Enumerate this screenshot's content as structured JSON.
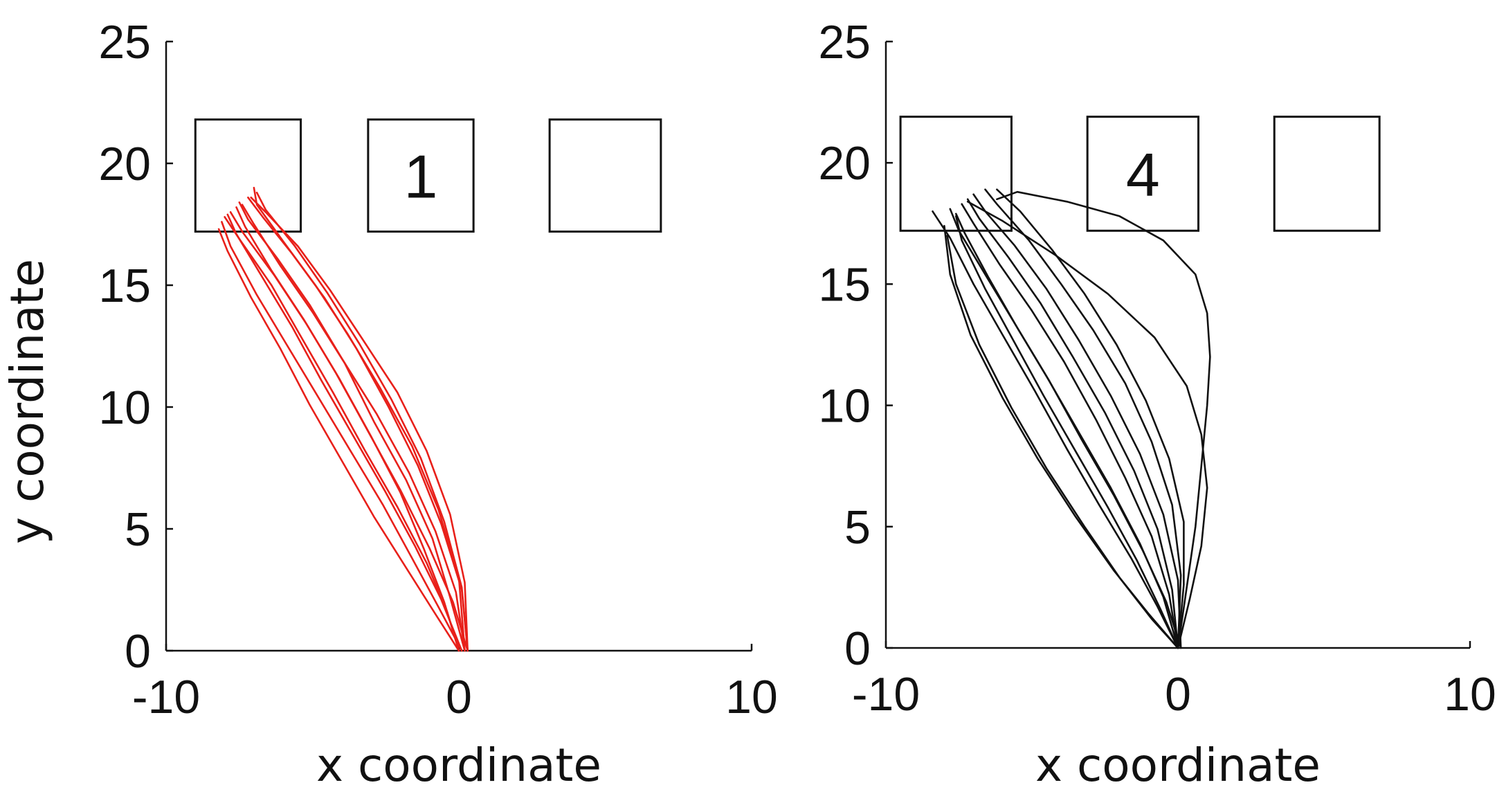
{
  "chart_data": [
    {
      "type": "line",
      "panel": "left",
      "title": "",
      "xlabel": "x coordinate",
      "ylabel": "y coordinate",
      "xlim": [
        -10,
        10
      ],
      "ylim": [
        0,
        25
      ],
      "xticks": [
        "-10",
        "0",
        "10"
      ],
      "yticks": [
        "0",
        "5",
        "10",
        "15",
        "20",
        "25"
      ],
      "grid": false,
      "trace_color": "#e8201a",
      "target_boxes": [
        {
          "x_range": [
            -9.0,
            -5.4
          ],
          "y_range": [
            17.2,
            21.8
          ],
          "label": ""
        },
        {
          "x_range": [
            -3.1,
            0.5
          ],
          "y_range": [
            17.2,
            21.8
          ],
          "label": "1"
        },
        {
          "x_range": [
            3.1,
            6.9
          ],
          "y_range": [
            17.2,
            21.8
          ],
          "label": ""
        }
      ],
      "series": [
        {
          "x": [
            0.0,
            -0.5,
            -1.2,
            -2.0,
            -3.0,
            -4.1,
            -5.2,
            -6.3,
            -7.4,
            -7.8
          ],
          "y": [
            0.0,
            2.0,
            4.2,
            6.5,
            8.8,
            11.2,
            13.4,
            15.4,
            17.2,
            18.0
          ]
        },
        {
          "x": [
            0.2,
            -0.3,
            -0.9,
            -1.8,
            -2.9,
            -3.9,
            -5.0,
            -6.1,
            -7.0,
            -7.4
          ],
          "y": [
            0.0,
            2.2,
            4.6,
            7.0,
            9.4,
            11.8,
            13.9,
            15.8,
            17.5,
            18.3
          ]
        },
        {
          "x": [
            0.3,
            0.1,
            -0.6,
            -1.4,
            -2.4,
            -3.5,
            -4.6,
            -5.7,
            -6.7,
            -7.2
          ],
          "y": [
            0.0,
            2.5,
            5.2,
            7.6,
            10.0,
            12.4,
            14.5,
            16.3,
            17.8,
            18.6
          ]
        },
        {
          "x": [
            0.1,
            -0.7,
            -1.6,
            -2.6,
            -3.7,
            -4.8,
            -5.9,
            -6.9,
            -7.8,
            -8.1
          ],
          "y": [
            0.0,
            1.8,
            3.8,
            6.0,
            8.2,
            10.4,
            12.6,
            14.6,
            16.6,
            17.6
          ]
        },
        {
          "x": [
            0.2,
            0.0,
            -0.7,
            -1.6,
            -2.7,
            -3.8,
            -4.9,
            -6.0,
            -6.9,
            -7.0
          ],
          "y": [
            0.0,
            3.0,
            5.8,
            8.4,
            10.8,
            13.0,
            15.0,
            16.8,
            18.3,
            19.0
          ]
        },
        {
          "x": [
            0.3,
            -0.2,
            -1.0,
            -2.0,
            -3.1,
            -4.2,
            -5.3,
            -6.4,
            -7.3,
            -7.6
          ],
          "y": [
            0.0,
            2.0,
            4.2,
            6.6,
            9.0,
            11.4,
            13.6,
            15.6,
            17.4,
            18.2
          ]
        },
        {
          "x": [
            0.0,
            -0.4,
            -1.1,
            -2.1,
            -3.2,
            -4.3,
            -5.4,
            -6.4,
            -7.5,
            -8.0
          ],
          "y": [
            0.0,
            1.6,
            3.6,
            5.9,
            8.2,
            10.6,
            12.9,
            15.0,
            16.9,
            17.8
          ]
        },
        {
          "x": [
            0.3,
            0.2,
            -0.3,
            -1.1,
            -2.1,
            -3.3,
            -4.4,
            -5.5,
            -6.6,
            -7.1
          ],
          "y": [
            0.0,
            2.8,
            5.6,
            8.2,
            10.6,
            12.8,
            14.8,
            16.6,
            18.0,
            18.6
          ]
        },
        {
          "x": [
            0.1,
            -0.6,
            -1.5,
            -2.5,
            -3.6,
            -4.7,
            -5.7,
            -6.7,
            -7.6,
            -7.9
          ],
          "y": [
            0.0,
            2.1,
            4.3,
            6.5,
            8.8,
            11.1,
            13.3,
            15.3,
            17.1,
            17.9
          ]
        },
        {
          "x": [
            0.2,
            -0.1,
            -0.8,
            -1.7,
            -2.8,
            -4.0,
            -5.1,
            -6.2,
            -7.2,
            -7.5
          ],
          "y": [
            0.0,
            2.4,
            4.9,
            7.3,
            9.7,
            12.0,
            14.2,
            16.1,
            17.7,
            18.4
          ]
        },
        {
          "x": [
            0.0,
            -0.8,
            -1.8,
            -2.9,
            -4.0,
            -5.1,
            -6.1,
            -7.1,
            -7.9,
            -8.2
          ],
          "y": [
            0.0,
            1.5,
            3.4,
            5.5,
            7.8,
            10.1,
            12.4,
            14.5,
            16.4,
            17.3
          ]
        },
        {
          "x": [
            0.3,
            0.1,
            -0.5,
            -1.3,
            -2.3,
            -3.4,
            -4.5,
            -5.6,
            -6.6,
            -6.9
          ],
          "y": [
            0.0,
            2.6,
            5.3,
            7.9,
            10.3,
            12.6,
            14.7,
            16.6,
            18.1,
            18.8
          ]
        }
      ]
    },
    {
      "type": "line",
      "panel": "right",
      "title": "",
      "xlabel": "x coordinate",
      "ylabel": "",
      "xlim": [
        -10,
        10
      ],
      "ylim": [
        0,
        25
      ],
      "xticks": [
        "-10",
        "0",
        "10"
      ],
      "yticks": [
        "0",
        "5",
        "10",
        "15",
        "20",
        "25"
      ],
      "grid": false,
      "trace_color": "#111111",
      "target_boxes": [
        {
          "x_range": [
            -9.5,
            -5.7
          ],
          "y_range": [
            17.2,
            21.9
          ],
          "label": ""
        },
        {
          "x_range": [
            -3.1,
            0.7
          ],
          "y_range": [
            17.2,
            21.9
          ],
          "label": "4"
        },
        {
          "x_range": [
            3.3,
            6.9
          ],
          "y_range": [
            17.2,
            21.9
          ],
          "label": ""
        }
      ],
      "series": [
        {
          "x": [
            0.0,
            0.3,
            0.6,
            0.8,
            1.0,
            1.1,
            1.0,
            0.6,
            -0.5,
            -2.0,
            -3.8,
            -5.5,
            -6.2
          ],
          "y": [
            0.0,
            2.5,
            5.0,
            7.5,
            10.0,
            12.0,
            13.8,
            15.4,
            16.8,
            17.8,
            18.4,
            18.8,
            18.5
          ]
        },
        {
          "x": [
            0.0,
            0.4,
            0.8,
            1.0,
            0.8,
            0.3,
            -0.8,
            -2.4,
            -4.2,
            -6.0,
            -7.2
          ],
          "y": [
            0.0,
            2.0,
            4.2,
            6.6,
            8.8,
            10.8,
            12.8,
            14.6,
            16.2,
            17.6,
            18.4
          ]
        },
        {
          "x": [
            0.0,
            -0.6,
            -1.4,
            -2.4,
            -3.5,
            -4.6,
            -5.6,
            -6.6,
            -7.4,
            -7.6
          ],
          "y": [
            0.0,
            1.6,
            3.6,
            5.8,
            8.1,
            10.4,
            12.6,
            14.8,
            16.8,
            17.8
          ]
        },
        {
          "x": [
            0.0,
            -0.3,
            -0.9,
            -1.8,
            -2.8,
            -3.9,
            -5.0,
            -6.1,
            -7.0,
            -7.4
          ],
          "y": [
            0.0,
            2.2,
            4.6,
            7.0,
            9.4,
            11.8,
            13.9,
            15.8,
            17.5,
            18.3
          ]
        },
        {
          "x": [
            0.1,
            0.0,
            -0.5,
            -1.3,
            -2.3,
            -3.4,
            -4.5,
            -5.6,
            -6.6,
            -7.0
          ],
          "y": [
            0.0,
            2.8,
            5.5,
            8.0,
            10.4,
            12.7,
            14.8,
            16.6,
            18.0,
            18.7
          ]
        },
        {
          "x": [
            0.0,
            -1.0,
            -2.2,
            -3.5,
            -4.8,
            -6.0,
            -7.1,
            -7.8,
            -8.0
          ],
          "y": [
            0.0,
            1.4,
            3.2,
            5.4,
            7.8,
            10.3,
            12.9,
            15.4,
            17.4
          ]
        },
        {
          "x": [
            0.0,
            -0.2,
            -0.7,
            -1.5,
            -2.5,
            -3.6,
            -4.7,
            -5.8,
            -6.8,
            -7.2
          ],
          "y": [
            0.0,
            2.4,
            4.9,
            7.3,
            9.7,
            12.0,
            14.2,
            16.1,
            17.7,
            18.5
          ]
        },
        {
          "x": [
            0.1,
            -0.4,
            -1.2,
            -2.2,
            -3.3,
            -4.4,
            -5.5,
            -6.5,
            -7.3,
            -7.6
          ],
          "y": [
            0.0,
            1.9,
            4.0,
            6.3,
            8.6,
            11.0,
            13.2,
            15.3,
            17.1,
            17.9
          ]
        },
        {
          "x": [
            0.0,
            0.1,
            -0.2,
            -0.9,
            -1.8,
            -2.9,
            -4.0,
            -5.1,
            -6.2,
            -6.6
          ],
          "y": [
            0.0,
            3.0,
            5.9,
            8.5,
            10.9,
            13.1,
            15.0,
            16.8,
            18.3,
            18.9
          ]
        },
        {
          "x": [
            0.0,
            -0.7,
            -1.6,
            -2.7,
            -3.8,
            -4.9,
            -6.0,
            -7.0,
            -7.8,
            -8.4
          ],
          "y": [
            0.0,
            1.7,
            3.7,
            5.9,
            8.2,
            10.6,
            12.9,
            15.0,
            16.9,
            18.0
          ]
        },
        {
          "x": [
            0.0,
            0.2,
            0.2,
            -0.3,
            -1.1,
            -2.1,
            -3.2,
            -4.3,
            -5.4,
            -6.2
          ],
          "y": [
            0.0,
            2.6,
            5.2,
            7.8,
            10.2,
            12.5,
            14.6,
            16.4,
            18.0,
            18.9
          ]
        },
        {
          "x": [
            0.0,
            -0.5,
            -1.3,
            -2.3,
            -3.4,
            -4.5,
            -5.6,
            -6.6,
            -7.5,
            -7.8
          ],
          "y": [
            0.0,
            2.1,
            4.3,
            6.6,
            8.9,
            11.2,
            13.4,
            15.4,
            17.2,
            18.1
          ]
        },
        {
          "x": [
            0.0,
            -0.9,
            -2.0,
            -3.2,
            -4.5,
            -5.7,
            -6.8,
            -7.6,
            -7.9
          ],
          "y": [
            0.0,
            1.2,
            2.9,
            5.0,
            7.4,
            9.9,
            12.5,
            15.0,
            17.0
          ]
        }
      ]
    }
  ]
}
